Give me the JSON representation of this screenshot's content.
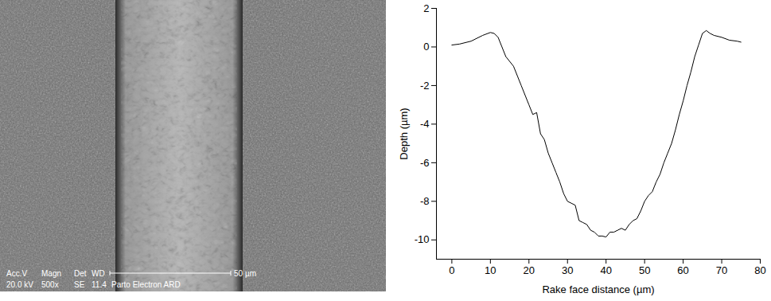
{
  "image": {
    "header": [
      "Acc.V",
      "Magn",
      "Det",
      "WD"
    ],
    "values": [
      "20.0 kV",
      "500x",
      "SE",
      "11.4"
    ],
    "scale_bar": "50 µm",
    "lab": "Parto Electron ARD"
  },
  "chart_data": {
    "type": "line",
    "x_label": "Rake face distance (µm)",
    "y_label": "Depth (µm)",
    "color": "#000000",
    "grid": false,
    "x": [
      0,
      2,
      5,
      8,
      10,
      11,
      12,
      13,
      14,
      16,
      18,
      20,
      21,
      22,
      23,
      24,
      25,
      26,
      27,
      28,
      29,
      30,
      31,
      32,
      33,
      34,
      35,
      36,
      37,
      38,
      39,
      40,
      41,
      42,
      43,
      44,
      45,
      46,
      47,
      48,
      49,
      50,
      51,
      52,
      53,
      54,
      55,
      56,
      57,
      58,
      59,
      60,
      61,
      62,
      63,
      64,
      65,
      66,
      67,
      68,
      70,
      72,
      74,
      75
    ],
    "values": [
      0.1,
      0.15,
      0.3,
      0.6,
      0.75,
      0.7,
      0.5,
      0,
      -0.5,
      -1.0,
      -2.0,
      -3.0,
      -3.5,
      -3.4,
      -4.5,
      -4.8,
      -5.5,
      -6.0,
      -6.5,
      -7.0,
      -7.6,
      -8.0,
      -8.1,
      -8.2,
      -9.0,
      -9.1,
      -9.2,
      -9.5,
      -9.6,
      -9.8,
      -9.8,
      -9.85,
      -9.6,
      -9.6,
      -9.5,
      -9.4,
      -9.5,
      -9.2,
      -9.0,
      -8.9,
      -8.5,
      -8.0,
      -7.7,
      -7.5,
      -7.0,
      -6.6,
      -6.0,
      -5.5,
      -5.0,
      -4.3,
      -3.5,
      -2.8,
      -2.0,
      -1.3,
      -0.5,
      0.1,
      0.7,
      0.85,
      0.7,
      0.6,
      0.5,
      0.35,
      0.3,
      0.25
    ],
    "xlim": [
      -4,
      80
    ],
    "xticks": [
      0,
      10,
      20,
      30,
      40,
      50,
      60,
      70,
      80
    ],
    "ylim": [
      -11,
      2
    ],
    "yticks": [
      -10,
      -8,
      -6,
      -4,
      -2,
      0,
      2
    ]
  }
}
